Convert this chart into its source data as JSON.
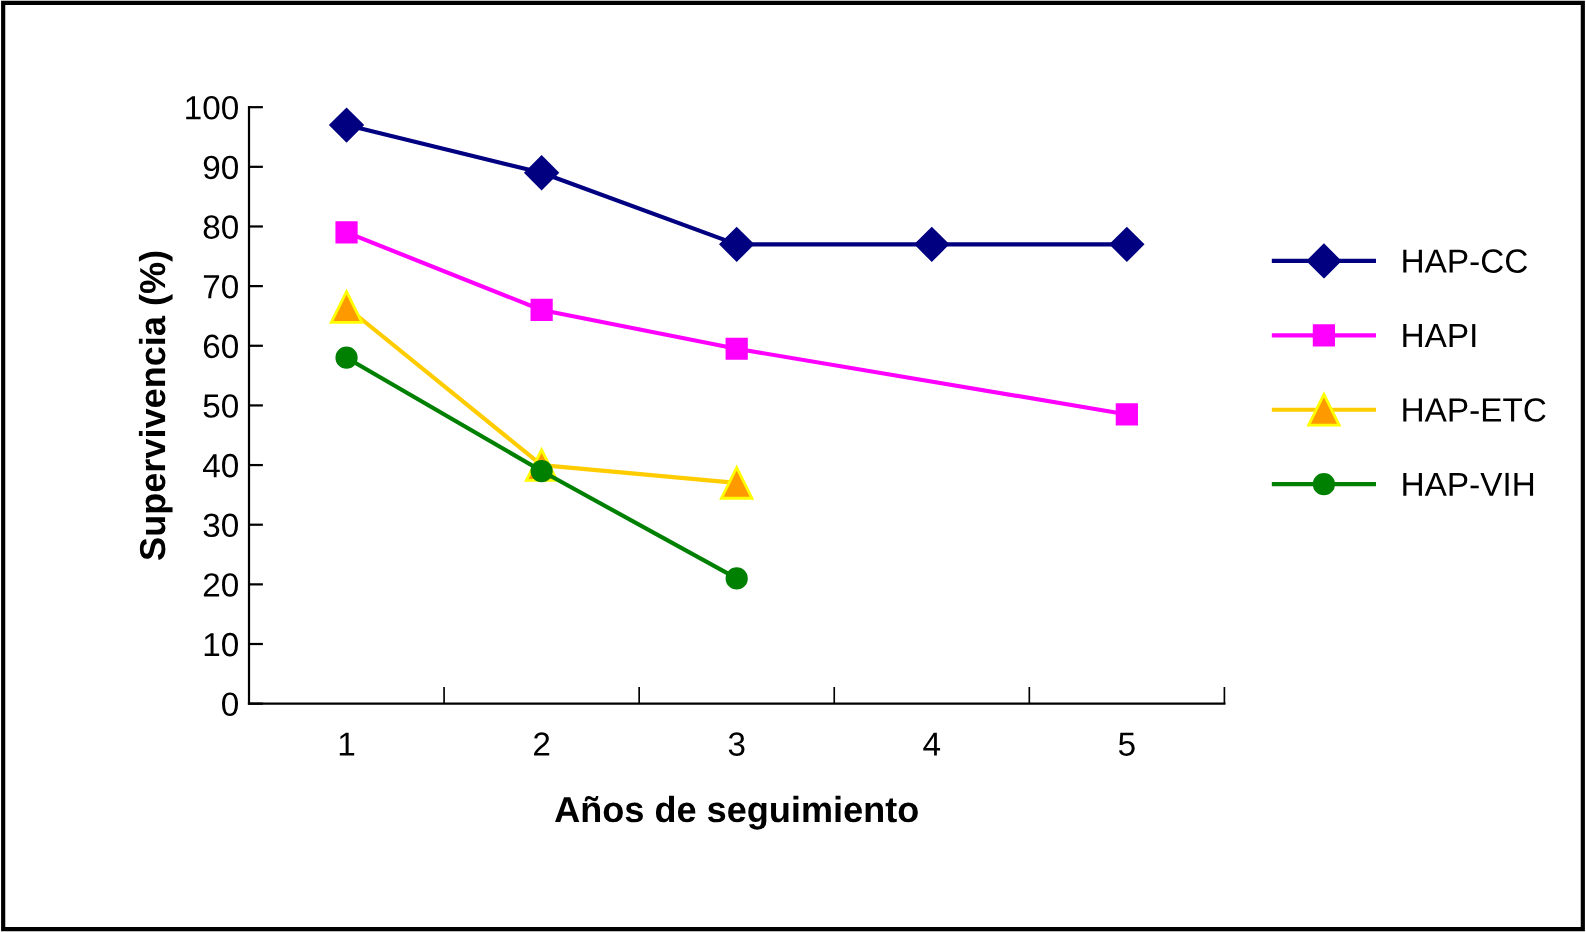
{
  "chart_data": {
    "type": "line",
    "xlabel": "Años de seguimiento",
    "ylabel": "Supervivencia (%)",
    "categories": [
      "1",
      "2",
      "3",
      "4",
      "5"
    ],
    "series": [
      {
        "name": "HAP-CC",
        "color": "#000080",
        "marker": "diamond",
        "values": [
          97,
          89,
          77,
          77,
          77
        ]
      },
      {
        "name": "HAPI",
        "color": "#ff00ff",
        "marker": "square",
        "values": [
          79,
          66,
          59.5,
          null,
          48.5
        ]
      },
      {
        "name": "HAP-ETC",
        "color": "#ffcc00",
        "marker": "triangle",
        "values": [
          66.5,
          40,
          37,
          null,
          null
        ]
      },
      {
        "name": "HAP-VIH",
        "color": "#008000",
        "marker": "circle",
        "values": [
          58,
          39,
          21,
          null,
          null
        ]
      }
    ],
    "ylim": [
      0,
      100
    ],
    "yticks": [
      0,
      10,
      20,
      30,
      40,
      50,
      60,
      70,
      80,
      90,
      100
    ],
    "grid": false,
    "legend": "right",
    "line_style": "solid"
  }
}
